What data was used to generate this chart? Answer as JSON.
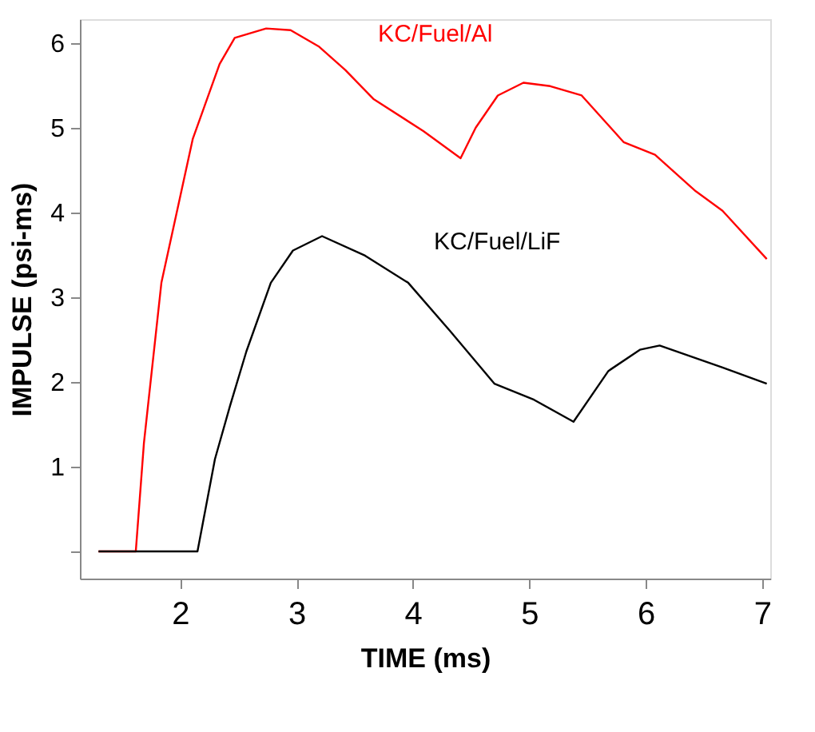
{
  "chart_data": {
    "type": "line",
    "xlabel": "TIME (ms)",
    "ylabel": "IMPULSE (psi-ms)",
    "xlim": [
      1.14,
      7.07
    ],
    "ylim": [
      -0.32,
      6.28
    ],
    "xticks": [
      2,
      3,
      4,
      5,
      6,
      7
    ],
    "yticks": [
      {
        "value": 0,
        "label": null
      },
      1,
      2,
      3,
      4,
      5,
      6
    ],
    "grid": false,
    "marker": "none",
    "line_style": "solid",
    "series": [
      {
        "name": "KC/Fuel/Al",
        "color": "#ff0000",
        "x": [
          1.3,
          1.62,
          1.69,
          1.84,
          2.11,
          2.34,
          2.47,
          2.74,
          2.95,
          3.19,
          3.42,
          3.66,
          4.09,
          4.41,
          4.54,
          4.73,
          4.95,
          5.18,
          5.45,
          5.81,
          6.08,
          6.43,
          6.66,
          7.04
        ],
        "values": [
          0,
          0,
          1.28,
          3.17,
          4.87,
          5.75,
          6.06,
          6.17,
          6.15,
          5.96,
          5.68,
          5.34,
          4.96,
          4.64,
          5.0,
          5.38,
          5.53,
          5.49,
          5.38,
          4.83,
          4.68,
          4.25,
          4.02,
          3.45
        ]
      },
      {
        "name": "KC/Fuel/LiF",
        "color": "#000000",
        "x": [
          1.3,
          2.08,
          2.15,
          2.3,
          2.43,
          2.57,
          2.78,
          2.97,
          3.22,
          3.59,
          3.96,
          4.32,
          4.7,
          5.04,
          5.38,
          5.68,
          5.95,
          6.12,
          6.66,
          7.04
        ],
        "values": [
          0,
          0,
          0,
          1.09,
          1.72,
          2.36,
          3.17,
          3.55,
          3.72,
          3.49,
          3.17,
          2.6,
          1.98,
          1.79,
          1.53,
          2.13,
          2.38,
          2.43,
          2.17,
          1.98
        ]
      }
    ]
  }
}
